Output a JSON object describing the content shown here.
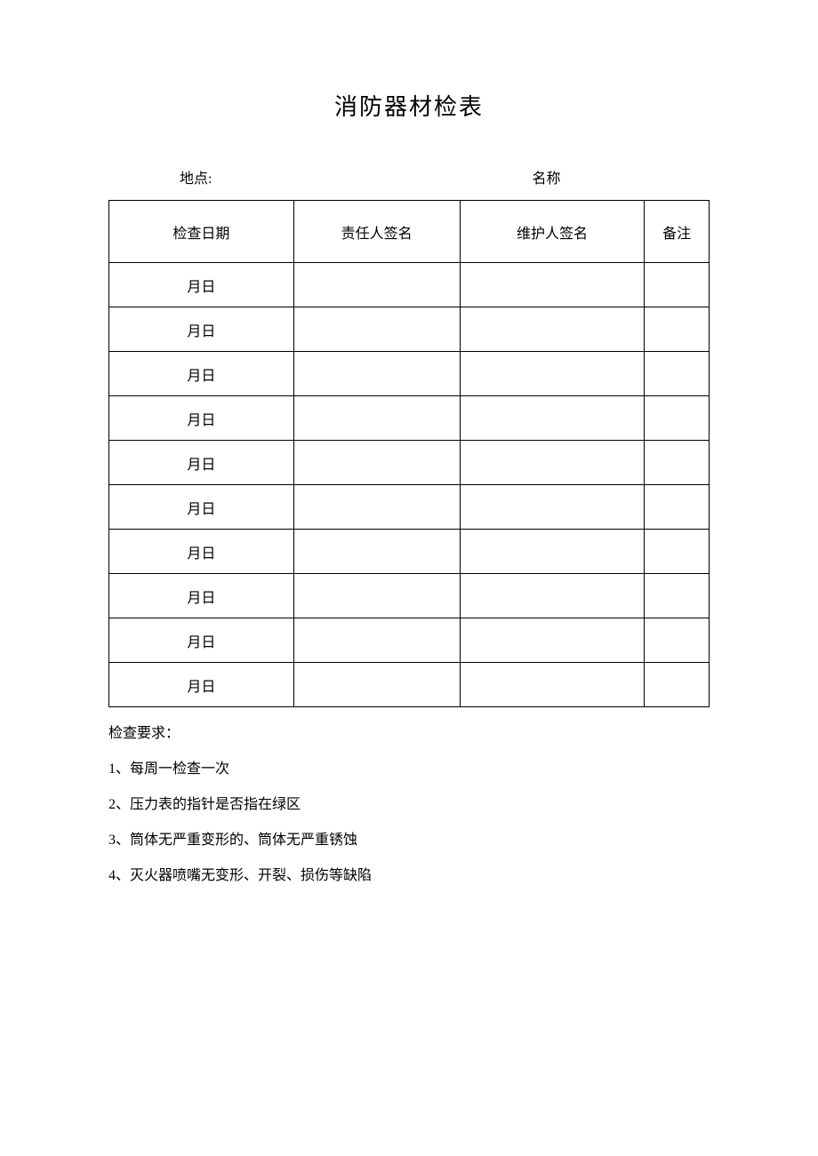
{
  "title": "消防器材检表",
  "meta": {
    "location_label": "地点:",
    "name_label": "名称"
  },
  "table": {
    "headers": {
      "date": "检查日期",
      "responsible": "责任人签名",
      "maintainer": "维护人签名",
      "remark": "备注"
    },
    "rows": [
      {
        "date": "月日",
        "responsible": "",
        "maintainer": "",
        "remark": ""
      },
      {
        "date": "月日",
        "responsible": "",
        "maintainer": "",
        "remark": ""
      },
      {
        "date": "月日",
        "responsible": "",
        "maintainer": "",
        "remark": ""
      },
      {
        "date": "月日",
        "responsible": "",
        "maintainer": "",
        "remark": ""
      },
      {
        "date": "月日",
        "responsible": "",
        "maintainer": "",
        "remark": ""
      },
      {
        "date": "月日",
        "responsible": "",
        "maintainer": "",
        "remark": ""
      },
      {
        "date": "月日",
        "responsible": "",
        "maintainer": "",
        "remark": ""
      },
      {
        "date": "月日",
        "responsible": "",
        "maintainer": "",
        "remark": ""
      },
      {
        "date": "月日",
        "responsible": "",
        "maintainer": "",
        "remark": ""
      },
      {
        "date": "月日",
        "responsible": "",
        "maintainer": "",
        "remark": ""
      }
    ]
  },
  "requirements": {
    "heading": "检查要求：",
    "items": [
      "1、每周一检查一次",
      "2、压力表的指针是否指在绿区",
      "3、筒体无严重变形的、筒体无严重锈蚀",
      "4、灭火器喷嘴无变形、开裂、损伤等缺陷"
    ]
  },
  "colors": {
    "background": "#ffffff",
    "text": "#000000",
    "border": "#000000"
  }
}
